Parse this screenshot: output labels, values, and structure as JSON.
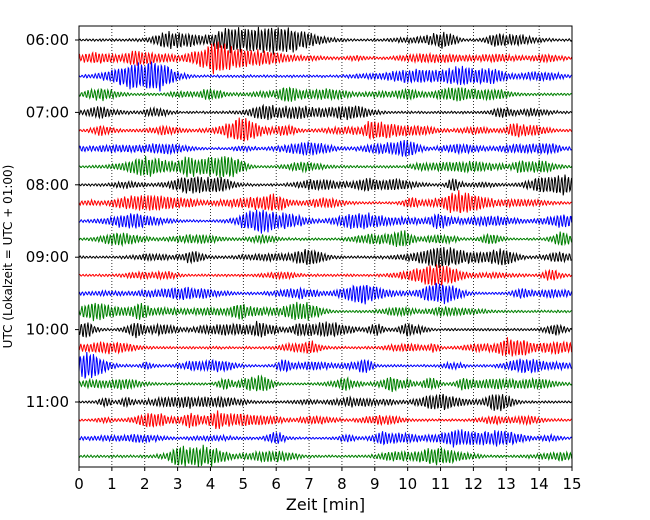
{
  "chart_data": {
    "type": "line",
    "title": "",
    "xlabel": "Zeit  [min]",
    "ylabel": "UTC (Lokalzeit = UTC + 01:00)",
    "xlim": [
      0,
      15
    ],
    "x_ticks": [
      "0",
      "1",
      "2",
      "3",
      "4",
      "5",
      "6",
      "7",
      "8",
      "9",
      "10",
      "11",
      "12",
      "13",
      "14",
      "15"
    ],
    "y_ticks": [
      "06:00",
      "07:00",
      "08:00",
      "09:00",
      "10:00",
      "11:00"
    ],
    "row_minutes": 15,
    "row_colors": [
      "#000000",
      "#ff0000",
      "#0000ff",
      "#008000"
    ],
    "row_start_times": [
      "06:00",
      "06:15",
      "06:30",
      "06:45",
      "07:00",
      "07:15",
      "07:30",
      "07:45",
      "08:00",
      "08:15",
      "08:30",
      "08:45",
      "09:00",
      "09:15",
      "09:30",
      "09:45",
      "10:00",
      "10:15",
      "10:30",
      "10:45",
      "11:00",
      "11:15",
      "11:30",
      "11:45"
    ],
    "grid_x": true,
    "grid_style": "dotted"
  }
}
